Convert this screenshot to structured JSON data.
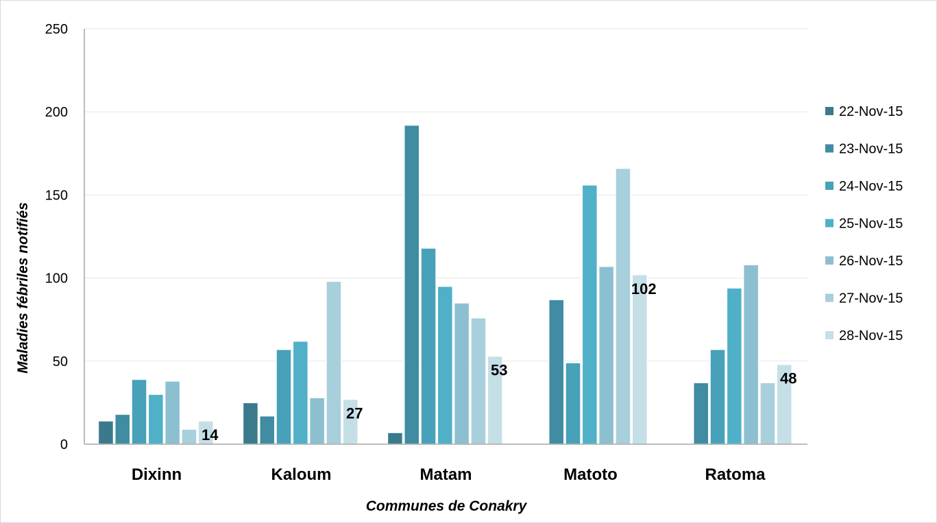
{
  "chart_data": {
    "type": "bar",
    "title": "",
    "xlabel": "Communes de Conakry",
    "ylabel": "Maladies fébriles notifiés",
    "ylim": [
      0,
      250
    ],
    "yticks": [
      "0",
      "50",
      "100",
      "150",
      "200",
      "250"
    ],
    "grid": true,
    "legend_position": "right",
    "categories": [
      "Dixinn",
      "Kaloum",
      "Matam",
      "Matoto",
      "Ratoma"
    ],
    "series": [
      {
        "name": "22-Nov-15",
        "color": "#3a7a8c",
        "values": [
          14,
          25,
          7,
          0,
          0
        ]
      },
      {
        "name": "23-Nov-15",
        "color": "#3f8ca3",
        "values": [
          18,
          17,
          192,
          87,
          37
        ]
      },
      {
        "name": "24-Nov-15",
        "color": "#47a1b8",
        "values": [
          39,
          57,
          118,
          49,
          57
        ]
      },
      {
        "name": "25-Nov-15",
        "color": "#4fb0c8",
        "values": [
          30,
          62,
          95,
          156,
          94
        ]
      },
      {
        "name": "26-Nov-15",
        "color": "#8cc0d0",
        "values": [
          38,
          28,
          85,
          107,
          108
        ]
      },
      {
        "name": "27-Nov-15",
        "color": "#a8cfdc",
        "values": [
          9,
          98,
          76,
          166,
          37
        ]
      },
      {
        "name": "28-Nov-15",
        "color": "#c5dfe6",
        "values": [
          14,
          27,
          53,
          102,
          48
        ]
      }
    ],
    "data_labels": [
      {
        "category": "Dixinn",
        "series": "28-Nov-15",
        "text": "14"
      },
      {
        "category": "Kaloum",
        "series": "28-Nov-15",
        "text": "27"
      },
      {
        "category": "Matam",
        "series": "28-Nov-15",
        "text": "53"
      },
      {
        "category": "Matoto",
        "series": "28-Nov-15",
        "text": "102"
      },
      {
        "category": "Ratoma",
        "series": "28-Nov-15",
        "text": "48"
      }
    ]
  }
}
